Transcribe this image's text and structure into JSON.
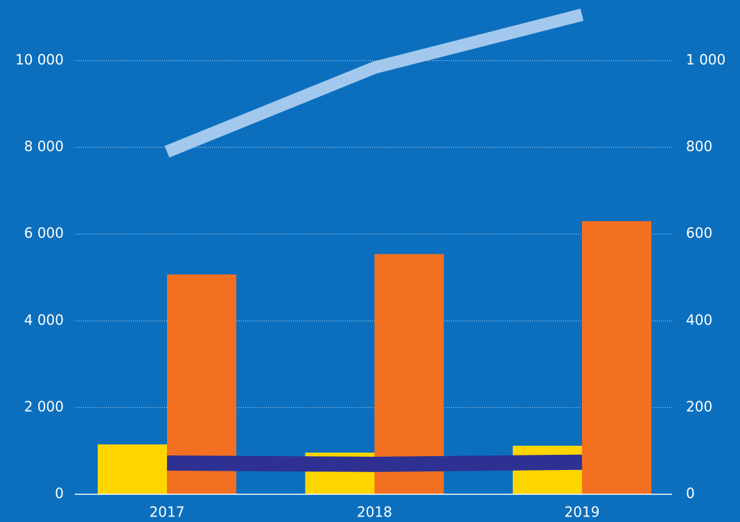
{
  "chart_data": {
    "type": "bar",
    "categories": [
      "2017",
      "2018",
      "2019"
    ],
    "series": [
      {
        "type": "bar",
        "color": "#ffd500",
        "values": [
          1150,
          960,
          1120
        ]
      },
      {
        "type": "bar",
        "color": "#f37021",
        "values": [
          5070,
          5540,
          6300
        ]
      },
      {
        "type": "line",
        "axis": "y2",
        "color": "#a3c8ed",
        "values": [
          790,
          984,
          1106
        ]
      },
      {
        "type": "line",
        "axis": "y2",
        "color": "#2e3192",
        "values": [
          72,
          69,
          74
        ]
      }
    ],
    "ylim": [
      0,
      11400
    ],
    "yticks": [
      0,
      {
        "value": 2000,
        "label": "2 000"
      },
      {
        "value": 4000,
        "label": "4 000"
      },
      {
        "value": 6000,
        "label": "6 000"
      },
      {
        "value": 8000,
        "label": "8 000"
      },
      {
        "value": 10000,
        "label": "10 000"
      }
    ],
    "y2lim": [
      0,
      1140
    ],
    "y2ticks": [
      0,
      200,
      400,
      600,
      800,
      {
        "value": 1000,
        "label": "1 000"
      }
    ],
    "grid": true
  }
}
